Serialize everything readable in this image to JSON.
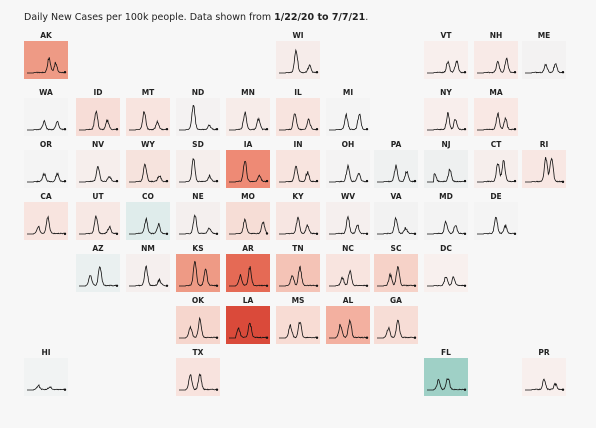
{
  "caption": {
    "prefix": "Daily New Cases per 100k people. Data shown from ",
    "range": "1/22/20 to 7/7/21",
    "suffix": "."
  },
  "chart_data": {
    "type": "line",
    "title": "Daily New Cases per 100k people. Data shown from 1/22/20 to 7/7/21.",
    "layout": "tile grid map of US states, one sparkline per state",
    "encoding": "tile fill color = recent trend (red = high, teal = low)",
    "states": [
      {
        "code": "AK",
        "row": 0,
        "col": 0,
        "color": "#ee9a85",
        "peaks": [
          [
            0.58,
            0.55
          ],
          [
            0.75,
            0.35
          ]
        ]
      },
      {
        "code": "WI",
        "row": 0,
        "col": 5,
        "color": "#f6ecea",
        "peaks": [
          [
            0.45,
            0.85
          ],
          [
            0.8,
            0.25
          ]
        ]
      },
      {
        "code": "VT",
        "row": 0,
        "col": 8,
        "color": "#f8efed",
        "peaks": [
          [
            0.55,
            0.4
          ],
          [
            0.78,
            0.45
          ]
        ]
      },
      {
        "code": "NH",
        "row": 0,
        "col": 9,
        "color": "#f8eae7",
        "peaks": [
          [
            0.55,
            0.4
          ],
          [
            0.78,
            0.5
          ]
        ]
      },
      {
        "code": "ME",
        "row": 0,
        "col": 10,
        "color": "#f3f2f2",
        "peaks": [
          [
            0.55,
            0.3
          ],
          [
            0.8,
            0.3
          ]
        ]
      },
      {
        "code": "WA",
        "row": 1,
        "col": 0,
        "color": "#f4f4f4",
        "peaks": [
          [
            0.45,
            0.3
          ],
          [
            0.8,
            0.3
          ]
        ]
      },
      {
        "code": "ID",
        "row": 1,
        "col": 1,
        "color": "#f7ddd7",
        "peaks": [
          [
            0.45,
            0.7
          ],
          [
            0.75,
            0.35
          ]
        ]
      },
      {
        "code": "MT",
        "row": 1,
        "col": 2,
        "color": "#f8e4df",
        "peaks": [
          [
            0.4,
            0.7
          ],
          [
            0.75,
            0.3
          ]
        ]
      },
      {
        "code": "ND",
        "row": 1,
        "col": 3,
        "color": "#f4f2f2",
        "peaks": [
          [
            0.38,
            0.95
          ],
          [
            0.8,
            0.15
          ]
        ]
      },
      {
        "code": "MN",
        "row": 1,
        "col": 4,
        "color": "#f7ece9",
        "peaks": [
          [
            0.42,
            0.65
          ],
          [
            0.78,
            0.4
          ]
        ]
      },
      {
        "code": "IL",
        "row": 1,
        "col": 5,
        "color": "#f8e4df",
        "peaks": [
          [
            0.42,
            0.65
          ],
          [
            0.78,
            0.4
          ]
        ]
      },
      {
        "code": "MI",
        "row": 1,
        "col": 6,
        "color": "#f4f4f4",
        "peaks": [
          [
            0.45,
            0.55
          ],
          [
            0.8,
            0.6
          ]
        ]
      },
      {
        "code": "NY",
        "row": 1,
        "col": 8,
        "color": "#f8eeec",
        "peaks": [
          [
            0.55,
            0.6
          ],
          [
            0.75,
            0.4
          ]
        ]
      },
      {
        "code": "MA",
        "row": 1,
        "col": 9,
        "color": "#f9e8e4",
        "peaks": [
          [
            0.55,
            0.6
          ],
          [
            0.75,
            0.4
          ]
        ]
      },
      {
        "code": "OR",
        "row": 2,
        "col": 0,
        "color": "#f4f4f4",
        "peaks": [
          [
            0.45,
            0.3
          ],
          [
            0.8,
            0.3
          ]
        ]
      },
      {
        "code": "NV",
        "row": 2,
        "col": 1,
        "color": "#f6eeec",
        "peaks": [
          [
            0.5,
            0.55
          ],
          [
            0.8,
            0.2
          ]
        ]
      },
      {
        "code": "WY",
        "row": 2,
        "col": 2,
        "color": "#f6e3dd",
        "peaks": [
          [
            0.42,
            0.7
          ],
          [
            0.8,
            0.25
          ]
        ]
      },
      {
        "code": "SD",
        "row": 2,
        "col": 3,
        "color": "#f5eeec",
        "peaks": [
          [
            0.38,
            0.9
          ],
          [
            0.8,
            0.2
          ]
        ]
      },
      {
        "code": "IA",
        "row": 2,
        "col": 4,
        "color": "#ee8a75",
        "peaks": [
          [
            0.42,
            0.8
          ],
          [
            0.8,
            0.2
          ]
        ]
      },
      {
        "code": "IN",
        "row": 2,
        "col": 5,
        "color": "#f8e4df",
        "peaks": [
          [
            0.45,
            0.6
          ],
          [
            0.75,
            0.35
          ]
        ]
      },
      {
        "code": "OH",
        "row": 2,
        "col": 6,
        "color": "#f4f3f3",
        "peaks": [
          [
            0.5,
            0.6
          ],
          [
            0.78,
            0.3
          ]
        ]
      },
      {
        "code": "PA",
        "row": 2,
        "col": 7,
        "color": "#eff1f1",
        "peaks": [
          [
            0.5,
            0.6
          ],
          [
            0.78,
            0.4
          ]
        ]
      },
      {
        "code": "NJ",
        "row": 2,
        "col": 8,
        "color": "#eef0f0",
        "peaks": [
          [
            0.2,
            0.3
          ],
          [
            0.6,
            0.45
          ]
        ]
      },
      {
        "code": "CT",
        "row": 2,
        "col": 9,
        "color": "#f6eeec",
        "peaks": [
          [
            0.55,
            0.7
          ],
          [
            0.7,
            0.8
          ]
        ]
      },
      {
        "code": "RI",
        "row": 2,
        "col": 10,
        "color": "#f8e7e3",
        "peaks": [
          [
            0.55,
            0.9
          ],
          [
            0.7,
            0.9
          ]
        ]
      },
      {
        "code": "CA",
        "row": 3,
        "col": 0,
        "color": "#f8e4df",
        "peaks": [
          [
            0.3,
            0.25
          ],
          [
            0.55,
            0.6
          ]
        ]
      },
      {
        "code": "UT",
        "row": 3,
        "col": 1,
        "color": "#f7e8e4",
        "peaks": [
          [
            0.45,
            0.65
          ],
          [
            0.8,
            0.25
          ]
        ]
      },
      {
        "code": "CO",
        "row": 3,
        "col": 2,
        "color": "#dfeceb",
        "peaks": [
          [
            0.45,
            0.55
          ],
          [
            0.78,
            0.35
          ]
        ]
      },
      {
        "code": "NE",
        "row": 3,
        "col": 3,
        "color": "#f4efee",
        "peaks": [
          [
            0.42,
            0.7
          ],
          [
            0.8,
            0.2
          ]
        ]
      },
      {
        "code": "MO",
        "row": 3,
        "col": 4,
        "color": "#f6ddd6",
        "peaks": [
          [
            0.42,
            0.55
          ],
          [
            0.9,
            0.45
          ]
        ]
      },
      {
        "code": "KY",
        "row": 3,
        "col": 5,
        "color": "#f7e6e2",
        "peaks": [
          [
            0.5,
            0.6
          ],
          [
            0.75,
            0.3
          ]
        ]
      },
      {
        "code": "WV",
        "row": 3,
        "col": 6,
        "color": "#f5efee",
        "peaks": [
          [
            0.5,
            0.6
          ],
          [
            0.75,
            0.3
          ]
        ]
      },
      {
        "code": "VA",
        "row": 3,
        "col": 7,
        "color": "#f2f2f2",
        "peaks": [
          [
            0.5,
            0.6
          ],
          [
            0.75,
            0.2
          ]
        ]
      },
      {
        "code": "MD",
        "row": 3,
        "col": 8,
        "color": "#f3f3f3",
        "peaks": [
          [
            0.5,
            0.45
          ],
          [
            0.75,
            0.3
          ]
        ]
      },
      {
        "code": "DE",
        "row": 3,
        "col": 9,
        "color": "#f4f4f4",
        "peaks": [
          [
            0.5,
            0.6
          ],
          [
            0.75,
            0.3
          ]
        ]
      },
      {
        "code": "AZ",
        "row": 4,
        "col": 1,
        "color": "#eaf0f0",
        "peaks": [
          [
            0.3,
            0.4
          ],
          [
            0.55,
            0.75
          ]
        ]
      },
      {
        "code": "NM",
        "row": 4,
        "col": 2,
        "color": "#f5efee",
        "peaks": [
          [
            0.45,
            0.7
          ],
          [
            0.8,
            0.2
          ]
        ]
      },
      {
        "code": "KS",
        "row": 4,
        "col": 3,
        "color": "#ee9a85",
        "peaks": [
          [
            0.42,
            0.9
          ],
          [
            0.7,
            0.6
          ]
        ]
      },
      {
        "code": "AR",
        "row": 4,
        "col": 4,
        "color": "#e56a55",
        "peaks": [
          [
            0.3,
            0.4
          ],
          [
            0.55,
            0.7
          ]
        ]
      },
      {
        "code": "TN",
        "row": 4,
        "col": 5,
        "color": "#f4c3b6",
        "peaks": [
          [
            0.35,
            0.4
          ],
          [
            0.55,
            0.7
          ]
        ]
      },
      {
        "code": "NC",
        "row": 4,
        "col": 6,
        "color": "#f8e4df",
        "peaks": [
          [
            0.35,
            0.3
          ],
          [
            0.55,
            0.55
          ]
        ]
      },
      {
        "code": "SC",
        "row": 4,
        "col": 7,
        "color": "#f6d2c8",
        "peaks": [
          [
            0.35,
            0.4
          ],
          [
            0.55,
            0.7
          ]
        ]
      },
      {
        "code": "DC",
        "row": 4,
        "col": 8,
        "color": "#f8f0ee",
        "peaks": [
          [
            0.5,
            0.35
          ],
          [
            0.7,
            0.3
          ]
        ]
      },
      {
        "code": "OK",
        "row": 5,
        "col": 3,
        "color": "#f6d6cd",
        "peaks": [
          [
            0.3,
            0.4
          ],
          [
            0.55,
            0.7
          ]
        ]
      },
      {
        "code": "LA",
        "row": 5,
        "col": 4,
        "color": "#da4a3a",
        "peaks": [
          [
            0.25,
            0.35
          ],
          [
            0.55,
            0.55
          ]
        ]
      },
      {
        "code": "MS",
        "row": 5,
        "col": 5,
        "color": "#f8dcd4",
        "peaks": [
          [
            0.3,
            0.45
          ],
          [
            0.55,
            0.6
          ]
        ]
      },
      {
        "code": "AL",
        "row": 5,
        "col": 6,
        "color": "#f3b0a0",
        "peaks": [
          [
            0.3,
            0.5
          ],
          [
            0.55,
            0.65
          ]
        ]
      },
      {
        "code": "GA",
        "row": 5,
        "col": 7,
        "color": "#f7ddd6",
        "peaks": [
          [
            0.3,
            0.35
          ],
          [
            0.55,
            0.7
          ]
        ]
      },
      {
        "code": "HI",
        "row": 6,
        "col": 0,
        "color": "#f1f3f3",
        "peaks": [
          [
            0.3,
            0.15
          ],
          [
            0.6,
            0.1
          ]
        ]
      },
      {
        "code": "TX",
        "row": 6,
        "col": 3,
        "color": "#f8e3de",
        "peaks": [
          [
            0.3,
            0.55
          ],
          [
            0.55,
            0.6
          ]
        ]
      },
      {
        "code": "FL",
        "row": 6,
        "col": 8,
        "color": "#9fd0c6",
        "peaks": [
          [
            0.3,
            0.35
          ],
          [
            0.55,
            0.45
          ]
        ]
      },
      {
        "code": "PR",
        "row": 6,
        "col": 10,
        "color": "#f8efed",
        "peaks": [
          [
            0.5,
            0.35
          ],
          [
            0.8,
            0.2
          ]
        ]
      }
    ]
  }
}
